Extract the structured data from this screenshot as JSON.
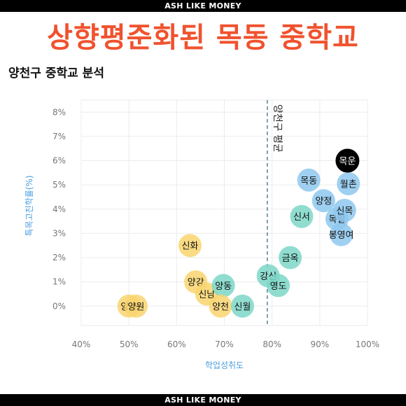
{
  "brand": "ASH LIKE MONEY",
  "headline": "상향평준화된 목동 중학교",
  "subtitle": "양천구 중학교 분석",
  "colors": {
    "headline": "#f0522e",
    "yellow": "#f9d56e",
    "blue": "#8ec8ef",
    "teal": "#7dd7c8",
    "black": "#000000",
    "axis_title": "#4a9ee0"
  },
  "chart_data": {
    "type": "scatter",
    "xlabel": "학업성취도",
    "ylabel": "특목고진학률(%)",
    "xlim": [
      40,
      100
    ],
    "ylim": [
      -0.8,
      8.5
    ],
    "x_ticks": [
      "40%",
      "50%",
      "60%",
      "70%",
      "80%",
      "90%",
      "100%"
    ],
    "y_ticks": [
      "0%",
      "1%",
      "2%",
      "3%",
      "4%",
      "5%",
      "6%",
      "7%",
      "8%"
    ],
    "grid": true,
    "reference_line": {
      "x": 79,
      "label": "양천구 평균"
    },
    "points": [
      {
        "name": "양서",
        "x": 50.0,
        "y": 0.0,
        "color": "yellow"
      },
      {
        "name": "양원",
        "x": 51.5,
        "y": 0.0,
        "color": "yellow"
      },
      {
        "name": "신화",
        "x": 62.8,
        "y": 2.5,
        "color": "yellow"
      },
      {
        "name": "양강",
        "x": 64.0,
        "y": 1.0,
        "color": "yellow"
      },
      {
        "name": "신남",
        "x": 66.3,
        "y": 0.5,
        "color": "yellow"
      },
      {
        "name": "양동",
        "x": 69.8,
        "y": 0.85,
        "color": "teal"
      },
      {
        "name": "양천",
        "x": 69.2,
        "y": 0.0,
        "color": "yellow"
      },
      {
        "name": "신월",
        "x": 73.8,
        "y": 0.0,
        "color": "teal"
      },
      {
        "name": "강신",
        "x": 79.2,
        "y": 1.25,
        "color": "teal"
      },
      {
        "name": "영도",
        "x": 81.3,
        "y": 0.85,
        "color": "teal"
      },
      {
        "name": "금옥",
        "x": 83.8,
        "y": 2.0,
        "color": "teal"
      },
      {
        "name": "신서",
        "x": 86.2,
        "y": 3.7,
        "color": "teal"
      },
      {
        "name": "목동",
        "x": 87.7,
        "y": 5.2,
        "color": "blue"
      },
      {
        "name": "양정",
        "x": 90.8,
        "y": 4.35,
        "color": "blue"
      },
      {
        "name": "목일",
        "x": 93.6,
        "y": 3.6,
        "color": "blue"
      },
      {
        "name": "신목",
        "x": 95.2,
        "y": 3.95,
        "color": "blue"
      },
      {
        "name": "봉영여",
        "x": 94.5,
        "y": 2.95,
        "color": "blue"
      },
      {
        "name": "월촌",
        "x": 96.0,
        "y": 5.05,
        "color": "blue"
      },
      {
        "name": "목운",
        "x": 95.8,
        "y": 6.0,
        "color": "black"
      }
    ]
  }
}
